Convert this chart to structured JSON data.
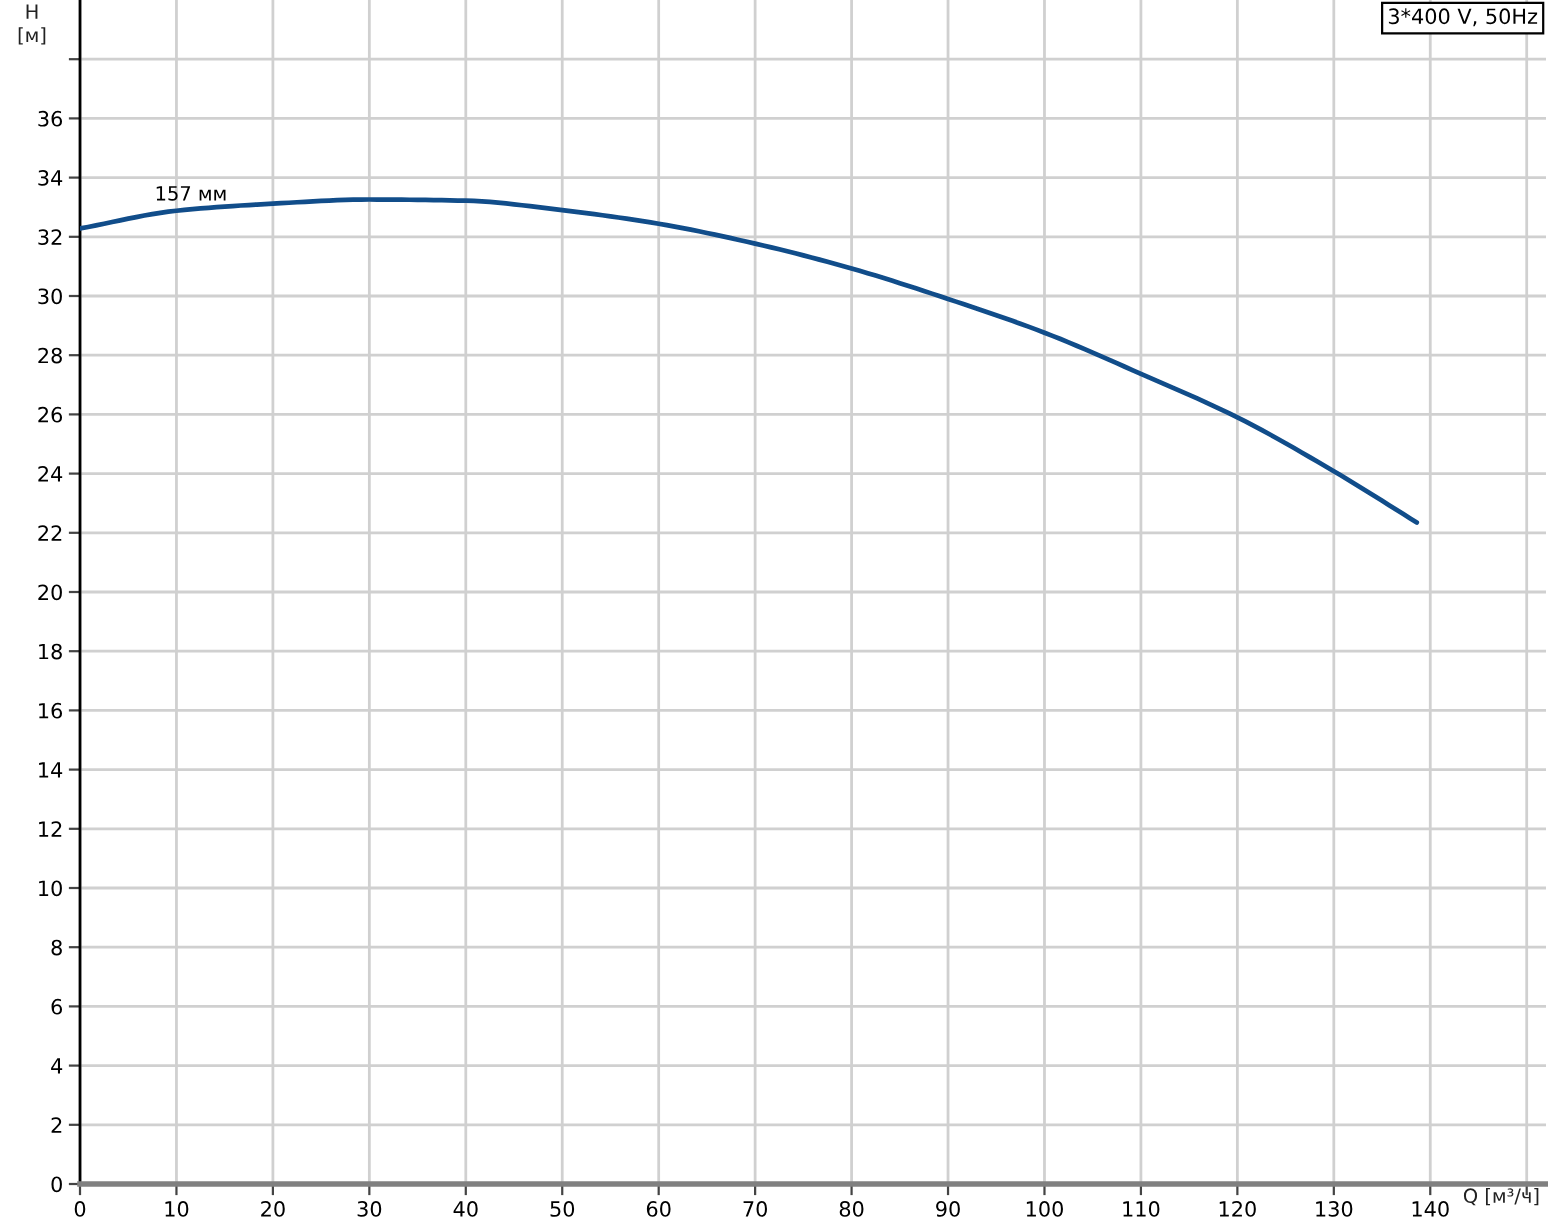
{
  "chart_data": {
    "type": "line",
    "title": "3*400 V, 50Hz",
    "xlabel": "Q [м³/ч]",
    "ylabel": "H\n[м]",
    "annotations": [
      {
        "text": "157 мм",
        "x": 11.5,
        "y": 33.0
      }
    ],
    "series": [
      {
        "color": "#114d8a",
        "x": [
          0,
          10,
          20,
          30,
          40,
          50,
          60,
          70,
          80,
          90,
          100,
          110,
          120,
          130,
          138.6
        ],
        "values": [
          32.28,
          32.88,
          33.12,
          33.26,
          33.22,
          32.9,
          32.44,
          31.77,
          30.93,
          29.9,
          28.76,
          27.37,
          25.9,
          24.08,
          22.35
        ]
      }
    ],
    "xlim": [
      0,
      152
    ],
    "ylim": [
      0,
      40
    ],
    "xticks": [
      0,
      10,
      20,
      30,
      40,
      50,
      60,
      70,
      80,
      90,
      100,
      110,
      120,
      130,
      140,
      {
        "value": 150,
        "label": null
      }
    ],
    "yticks": [
      0,
      2,
      4,
      6,
      8,
      10,
      12,
      14,
      16,
      18,
      20,
      22,
      24,
      26,
      28,
      30,
      32,
      34,
      36,
      {
        "value": 38,
        "label": null
      }
    ],
    "grid": true
  }
}
